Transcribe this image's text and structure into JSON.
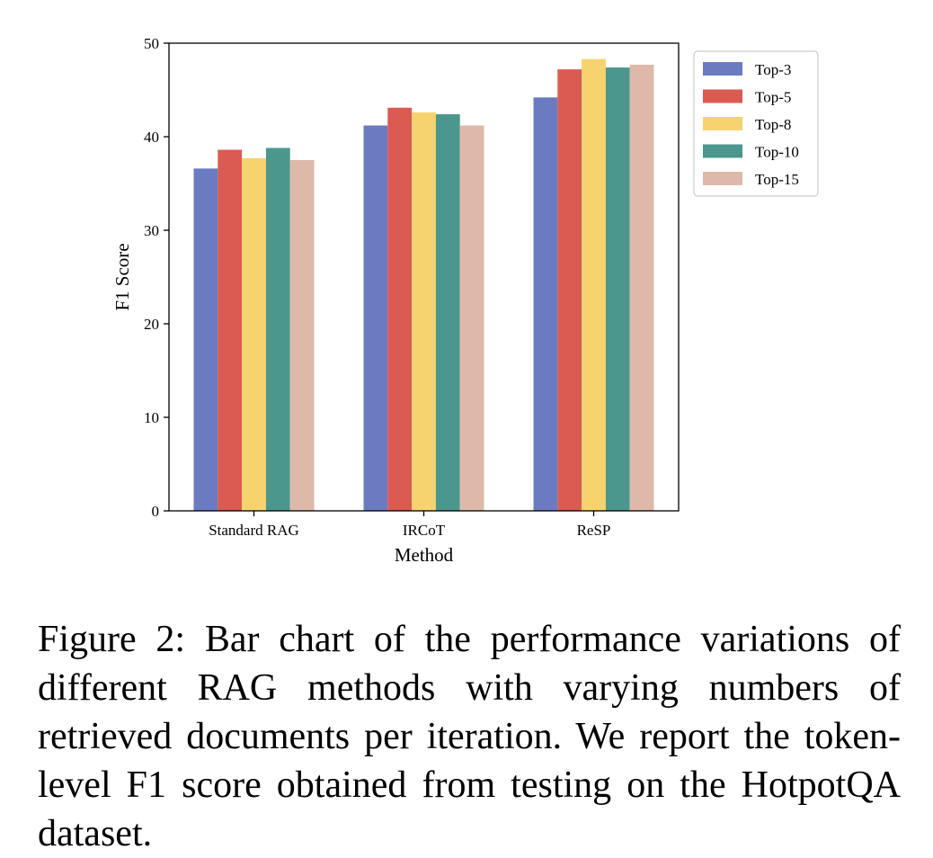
{
  "chart_data": {
    "type": "bar",
    "title": "",
    "xlabel": "Method",
    "ylabel": "F1 Score",
    "ylim": [
      0,
      50
    ],
    "yticks": [
      0,
      10,
      20,
      30,
      40,
      50
    ],
    "grid": false,
    "legend_position": "top-right",
    "categories": [
      "Standard RAG",
      "IRCoT",
      "ReSP"
    ],
    "series": [
      {
        "name": "Top-3",
        "color": "#6b7bc2",
        "values": [
          36.6,
          41.2,
          44.2
        ]
      },
      {
        "name": "Top-5",
        "color": "#db5a52",
        "values": [
          38.6,
          43.1,
          47.2
        ]
      },
      {
        "name": "Top-8",
        "color": "#f6d36e",
        "values": [
          37.7,
          42.6,
          48.3
        ]
      },
      {
        "name": "Top-10",
        "color": "#4b978d",
        "values": [
          38.8,
          42.4,
          47.4
        ]
      },
      {
        "name": "Top-15",
        "color": "#deb9a9",
        "values": [
          37.5,
          41.2,
          47.7
        ]
      }
    ]
  },
  "caption": "Figure 2: Bar chart of the performance variations of different RAG methods with varying numbers of retrieved documents per iteration. We report the token-level F1 score obtained from testing on the HotpotQA dataset."
}
